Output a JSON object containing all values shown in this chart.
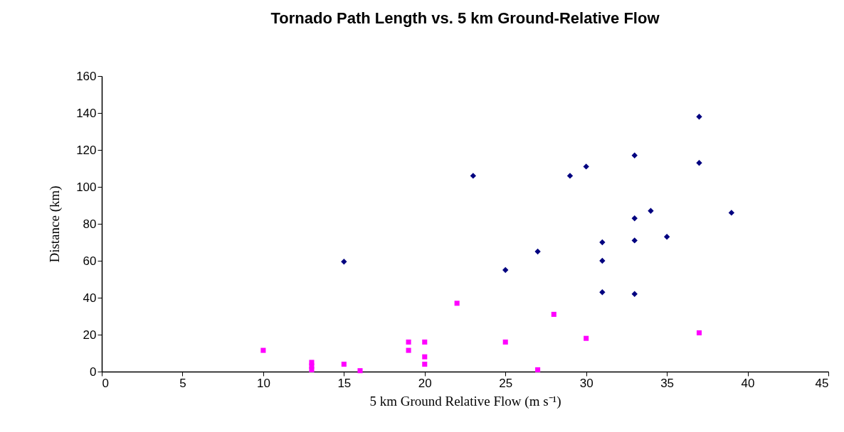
{
  "chart_data": {
    "type": "scatter",
    "title": "Tornado Path Length vs. 5 km Ground-Relative Flow",
    "xlabel": "5 km Ground Relative Flow (m s⁻¹)",
    "ylabel": "Distance (km)",
    "xlim": [
      0,
      45
    ],
    "xticks": [
      0,
      5,
      10,
      15,
      20,
      25,
      30,
      35,
      40,
      45
    ],
    "ylim": [
      0,
      160
    ],
    "yticks": [
      0,
      20,
      40,
      60,
      80,
      100,
      120,
      140,
      160
    ],
    "series": [
      {
        "color": "#000080",
        "marker": "diamond",
        "x": [
          15,
          23,
          25,
          27,
          29,
          30,
          31,
          31,
          31,
          33,
          33,
          33,
          33,
          34,
          35,
          37,
          37,
          39
        ],
        "values": [
          59.5,
          106,
          55,
          65,
          106,
          111,
          70,
          60,
          43,
          117,
          83,
          71,
          42,
          87,
          73,
          138,
          113,
          86
        ]
      },
      {
        "color": "#ff00ff",
        "marker": "square",
        "x": [
          10,
          13,
          13,
          13,
          15,
          16,
          19,
          19,
          20,
          20,
          20,
          22,
          25,
          27,
          28,
          30,
          37
        ],
        "values": [
          11.5,
          5,
          3,
          1,
          4,
          0.5,
          16,
          11.5,
          16,
          8,
          4,
          37,
          16,
          1,
          31,
          18,
          21
        ]
      }
    ]
  }
}
